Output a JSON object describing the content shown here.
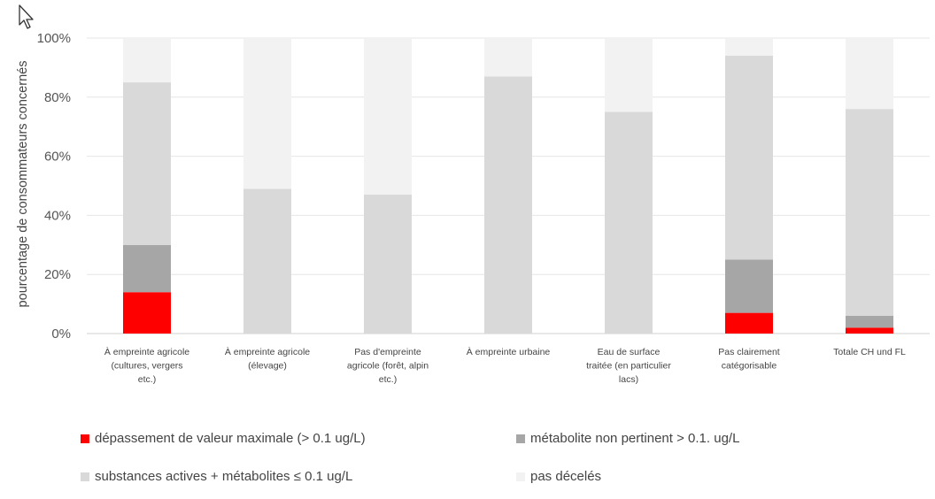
{
  "chart_data": {
    "type": "bar",
    "stacked": true,
    "percent": true,
    "ylabel": "pourcentage de consommateurs concernés",
    "yticks": [
      "0%",
      "20%",
      "40%",
      "60%",
      "80%",
      "100%"
    ],
    "ylim": [
      0,
      100
    ],
    "grid": true,
    "legend_position": "bottom",
    "categories": [
      [
        "À empreinte agricole",
        "(cultures, vergers",
        "etc.)"
      ],
      [
        "À empreinte agricole",
        "(élevage)"
      ],
      [
        "Pas d'empreinte",
        "agricole (forêt, alpin",
        "etc.)"
      ],
      [
        "À empreinte urbaine"
      ],
      [
        "Eau de surface",
        "traitée (en particulier",
        "lacs)"
      ],
      [
        "Pas clairement",
        "catégorisable"
      ],
      [
        "Totale CH und FL"
      ]
    ],
    "series": [
      {
        "name": "dépassement de valeur maximale (> 0.1 ug/L)",
        "color": "#ff0000",
        "values": [
          14,
          0,
          0,
          0,
          0,
          7,
          2
        ]
      },
      {
        "name": "métabolite non pertinent > 0.1. ug/L",
        "color": "#a6a6a6",
        "values": [
          16,
          0,
          0,
          0,
          0,
          18,
          4
        ]
      },
      {
        "name": "substances actives + métabolites ≤ 0.1 ug/L",
        "color": "#d9d9d9",
        "values": [
          55,
          49,
          47,
          87,
          75,
          69,
          70
        ]
      },
      {
        "name": "pas décelés",
        "color": "#f2f2f2",
        "values": [
          15,
          51,
          53,
          13,
          25,
          6,
          24
        ]
      }
    ]
  }
}
